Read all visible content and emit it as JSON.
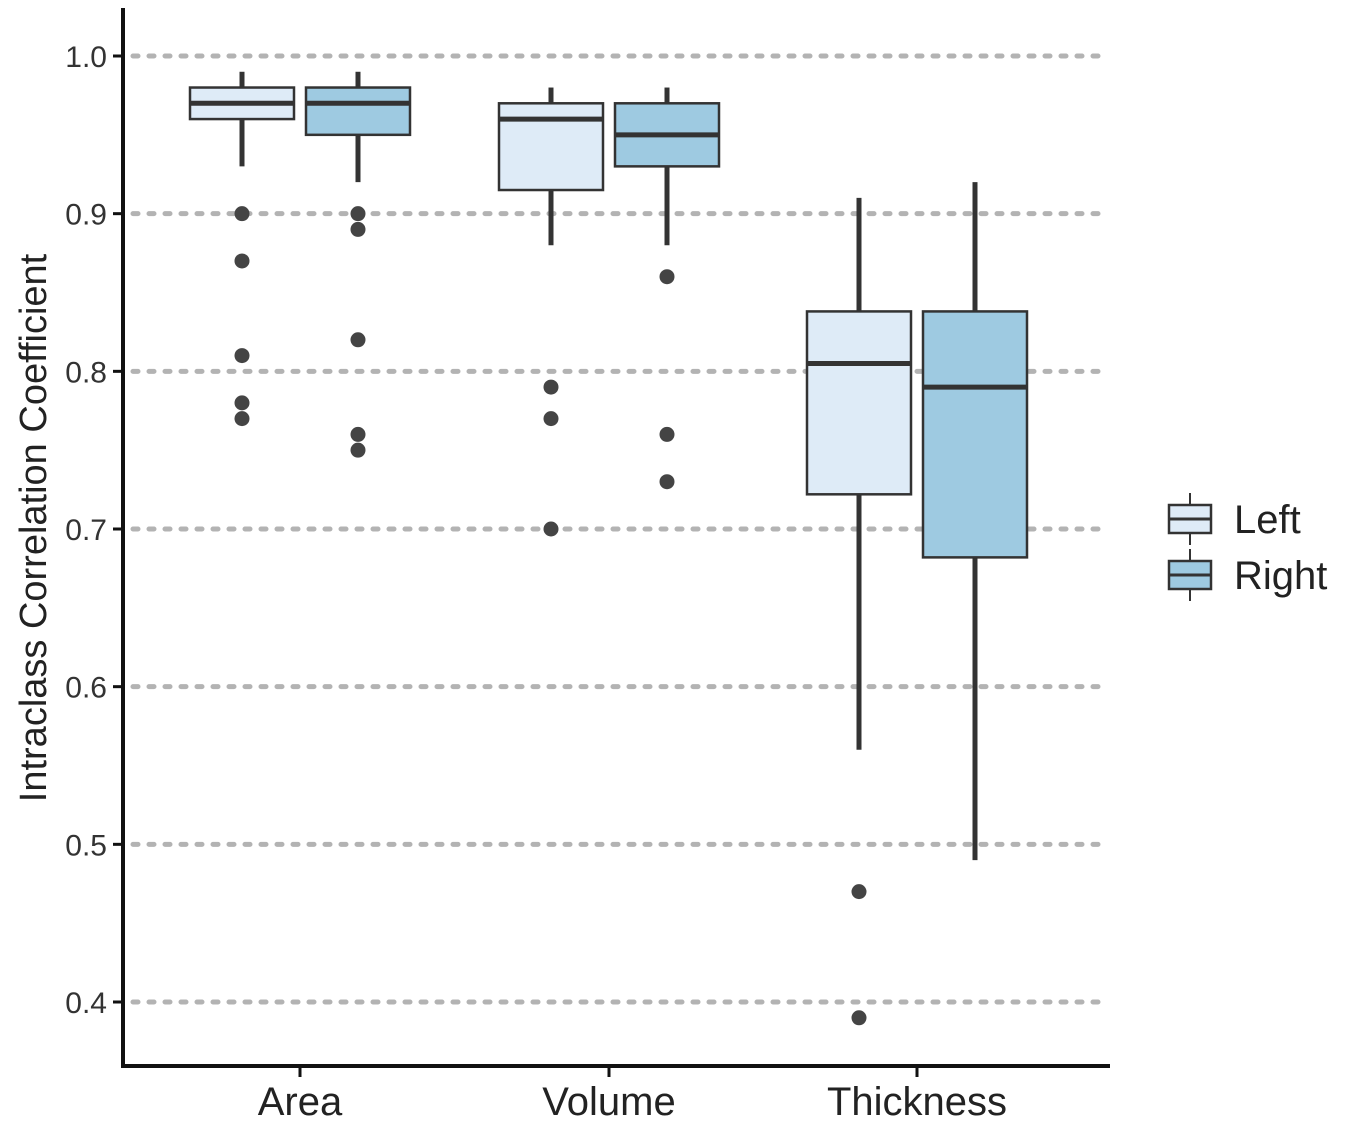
{
  "chart_data": {
    "type": "box",
    "title": "",
    "xlabel": "",
    "ylabel": "Intraclass Correlation Coefficient",
    "ylim": [
      0.37,
      1.03
    ],
    "yticks": [
      "0.4",
      "0.5",
      "0.6",
      "0.7",
      "0.8",
      "0.9",
      "1.0"
    ],
    "ytick_values": [
      0.4,
      0.5,
      0.6,
      0.7,
      0.8,
      0.9,
      1.0
    ],
    "categories": [
      "Area",
      "Volume",
      "Thickness"
    ],
    "grid": "horizontal dotted",
    "legend_position": "right",
    "series": [
      {
        "name": "Left",
        "color": "#deebf7",
        "boxes": [
          {
            "category": "Area",
            "whisker_low": 0.93,
            "q1": 0.96,
            "median": 0.97,
            "q3": 0.98,
            "whisker_high": 0.99,
            "outliers": [
              0.9,
              0.87,
              0.81,
              0.78,
              0.77
            ]
          },
          {
            "category": "Volume",
            "whisker_low": 0.88,
            "q1": 0.915,
            "median": 0.96,
            "q3": 0.97,
            "whisker_high": 0.98,
            "outliers": [
              0.79,
              0.77,
              0.7
            ]
          },
          {
            "category": "Thickness",
            "whisker_low": 0.56,
            "q1": 0.722,
            "median": 0.805,
            "q3": 0.838,
            "whisker_high": 0.91,
            "outliers": [
              0.47,
              0.39
            ]
          }
        ]
      },
      {
        "name": "Right",
        "color": "#9ecae1",
        "boxes": [
          {
            "category": "Area",
            "whisker_low": 0.92,
            "q1": 0.95,
            "median": 0.97,
            "q3": 0.98,
            "whisker_high": 0.99,
            "outliers": [
              0.9,
              0.89,
              0.82,
              0.76,
              0.75
            ]
          },
          {
            "category": "Volume",
            "whisker_low": 0.88,
            "q1": 0.93,
            "median": 0.95,
            "q3": 0.97,
            "whisker_high": 0.98,
            "outliers": [
              0.86,
              0.76,
              0.73
            ]
          },
          {
            "category": "Thickness",
            "whisker_low": 0.49,
            "q1": 0.682,
            "median": 0.79,
            "q3": 0.838,
            "whisker_high": 0.92,
            "outliers": []
          }
        ]
      }
    ]
  },
  "style": {
    "line_color": "#333333",
    "outlier_color": "#444444",
    "grid_color": "#b3b3b3",
    "axis_color": "#111111"
  }
}
